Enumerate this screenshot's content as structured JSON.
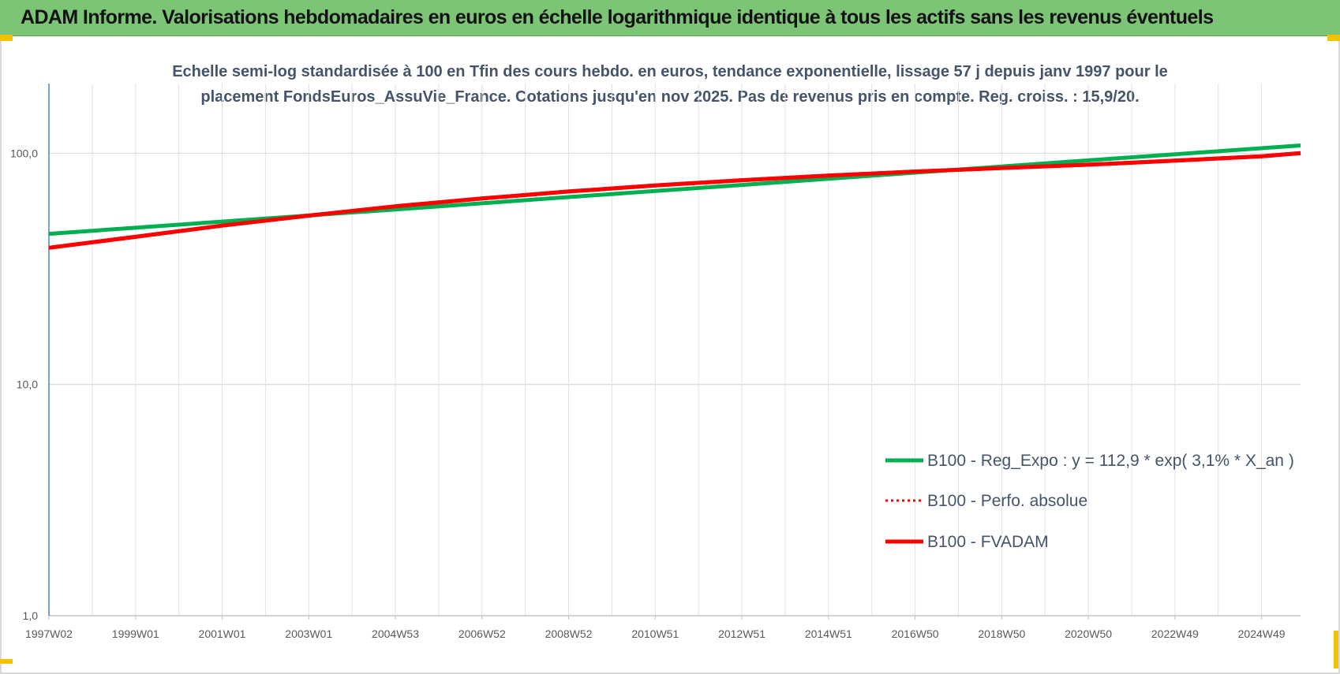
{
  "banner": {
    "title": "ADAM Informe. Valorisations hebdomadaires en euros en échelle logarithmique identique à tous les actifs sans les revenus éventuels"
  },
  "colors": {
    "banner_bg": "#7cc576",
    "reg_expo": "#00b050",
    "perfo_absolue": "#ff0000",
    "fvadam": "#ff0000",
    "title_text": "#44546a",
    "grid": "#d9d9d9",
    "corner_marks": "#f5c200"
  },
  "chart_data": {
    "type": "line",
    "title_lines": [
      "Echelle semi-log standardisée à 100 en Tfin des cours hebdo. en euros, tendance exponentielle, lissage 57 j depuis janv 1997 pour le",
      "placement FondsEuros_AssuVie_France. Cotations jusqu'en nov 2025. Pas de revenus pris en compte. Reg. croiss. : 15,9/20."
    ],
    "y_scale": "log",
    "ylim": [
      1,
      200
    ],
    "y_ticks": [
      {
        "value": 1,
        "label": "1,0"
      },
      {
        "value": 10,
        "label": "10,0"
      },
      {
        "value": 100,
        "label": "100,0"
      }
    ],
    "x_range": [
      1997.0,
      2025.9
    ],
    "x_ticks": [
      {
        "x": 1997.0,
        "label": "1997W02"
      },
      {
        "x": 1999.0,
        "label": "1999W01"
      },
      {
        "x": 2001.0,
        "label": "2001W01"
      },
      {
        "x": 2003.0,
        "label": "2003W01"
      },
      {
        "x": 2005.0,
        "label": "2004W53"
      },
      {
        "x": 2007.0,
        "label": "2006W52"
      },
      {
        "x": 2009.0,
        "label": "2008W52"
      },
      {
        "x": 2011.0,
        "label": "2010W51"
      },
      {
        "x": 2013.0,
        "label": "2012W51"
      },
      {
        "x": 2015.0,
        "label": "2014W51"
      },
      {
        "x": 2017.0,
        "label": "2016W50"
      },
      {
        "x": 2019.0,
        "label": "2018W50"
      },
      {
        "x": 2021.0,
        "label": "2020W50"
      },
      {
        "x": 2023.0,
        "label": "2022W49"
      },
      {
        "x": 2025.0,
        "label": "2024W49"
      }
    ],
    "grid": true,
    "legend_position": "bottom-right",
    "series": [
      {
        "name": "B100 - Reg_Expo : y = 112,9 * exp( 3,1% *  X_an )",
        "color": "#00b050",
        "style": "solid",
        "x": [
          1997.0,
          1999.0,
          2001.0,
          2003.0,
          2005.0,
          2007.0,
          2009.0,
          2011.0,
          2013.0,
          2015.0,
          2017.0,
          2019.0,
          2021.0,
          2023.0,
          2025.0,
          2025.9
        ],
        "y": [
          44.8,
          47.6,
          50.6,
          53.8,
          57.1,
          60.7,
          64.6,
          68.6,
          72.9,
          77.5,
          82.4,
          87.6,
          93.1,
          98.9,
          105.1,
          108.0
        ]
      },
      {
        "name": "B100 - Perfo. absolue",
        "color": "#ff0000",
        "style": "dotted",
        "x": [
          1997.0,
          1999.0,
          2001.0,
          2003.0,
          2005.0,
          2007.0,
          2009.0,
          2011.0,
          2013.0,
          2015.0,
          2017.0,
          2019.0,
          2021.0,
          2023.0,
          2025.0,
          2025.9
        ],
        "y": [
          39.0,
          43.5,
          48.6,
          53.7,
          58.9,
          63.7,
          68.3,
          72.5,
          76.4,
          80.0,
          83.3,
          86.3,
          89.2,
          92.8,
          97.0,
          100.0
        ]
      },
      {
        "name": "B100 - FVADAM",
        "color": "#ff0000",
        "style": "solid",
        "x": [
          1997.0,
          1999.0,
          2001.0,
          2003.0,
          2005.0,
          2007.0,
          2009.0,
          2011.0,
          2013.0,
          2015.0,
          2017.0,
          2019.0,
          2021.0,
          2023.0,
          2025.0,
          2025.9
        ],
        "y": [
          39.0,
          43.5,
          48.6,
          53.7,
          58.9,
          63.7,
          68.3,
          72.5,
          76.4,
          80.0,
          83.3,
          86.3,
          89.2,
          92.8,
          97.0,
          100.0
        ]
      }
    ]
  }
}
